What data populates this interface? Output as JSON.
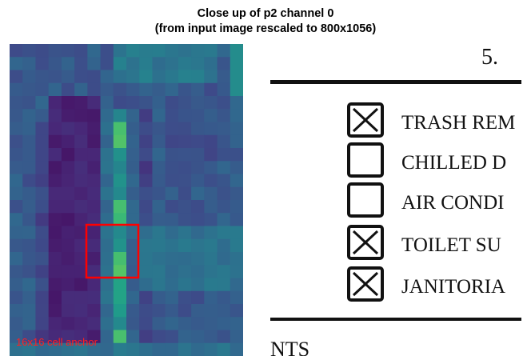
{
  "title_line1": "Close up of p2 channel 0",
  "title_line2": "(from input image rescaled to 800x1056)",
  "heatmap": {
    "annotation": "16x16 cell anchor",
    "colormap": "viridis",
    "highlight_color": "#ff0000",
    "annotation_color": "#ff2020"
  },
  "document": {
    "page_number": "5.",
    "items": [
      {
        "label": "TRASH REM",
        "checked": true
      },
      {
        "label": "CHILLED D",
        "checked": false
      },
      {
        "label": "AIR CONDI",
        "checked": false
      },
      {
        "label": "TOILET SU",
        "checked": true
      },
      {
        "label": "JANITORIA",
        "checked": true
      }
    ],
    "bottom_text": "NTS"
  }
}
